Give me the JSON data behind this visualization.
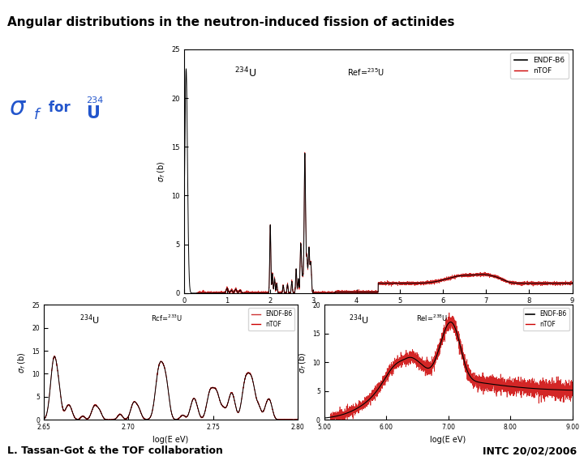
{
  "title": "Angular distributions in the neutron-induced fission of actinides",
  "title_color": "#000000",
  "title_fontsize": 11,
  "header_bar_color": "#3355cc",
  "footer_bar_color": "#3355cc",
  "footer_left": "L. Tassan-Got & the TOF collaboration",
  "footer_right": "INTC 20/02/2006",
  "footer_fontsize": 9,
  "sigma_color": "#2255cc",
  "background_color": "#ffffff",
  "plot_bg_color": "#ffffff",
  "endf_color": "#000000",
  "ntof_color": "#cc0000",
  "plot1_xlim": [
    0,
    9
  ],
  "plot1_ylim": [
    0,
    25
  ],
  "plot1_xticks": [
    0,
    1,
    2,
    3,
    4,
    5,
    6,
    7,
    8,
    9
  ],
  "plot1_yticks": [
    0,
    5,
    10,
    15,
    20,
    25
  ],
  "plot2_xlim": [
    2.65,
    2.8
  ],
  "plot2_ylim": [
    0,
    25
  ],
  "plot2_xticks": [
    2.65,
    2.7,
    2.75,
    2.8
  ],
  "plot2_yticks": [
    0,
    5,
    10,
    15,
    20,
    25
  ],
  "plot3_xlim": [
    5.0,
    9.0
  ],
  "plot3_ylim": [
    0,
    20
  ],
  "plot3_xticks": [
    5.0,
    6.0,
    7.0,
    8.0,
    9.0
  ],
  "plot3_yticks": [
    0,
    5,
    10,
    15,
    20
  ]
}
